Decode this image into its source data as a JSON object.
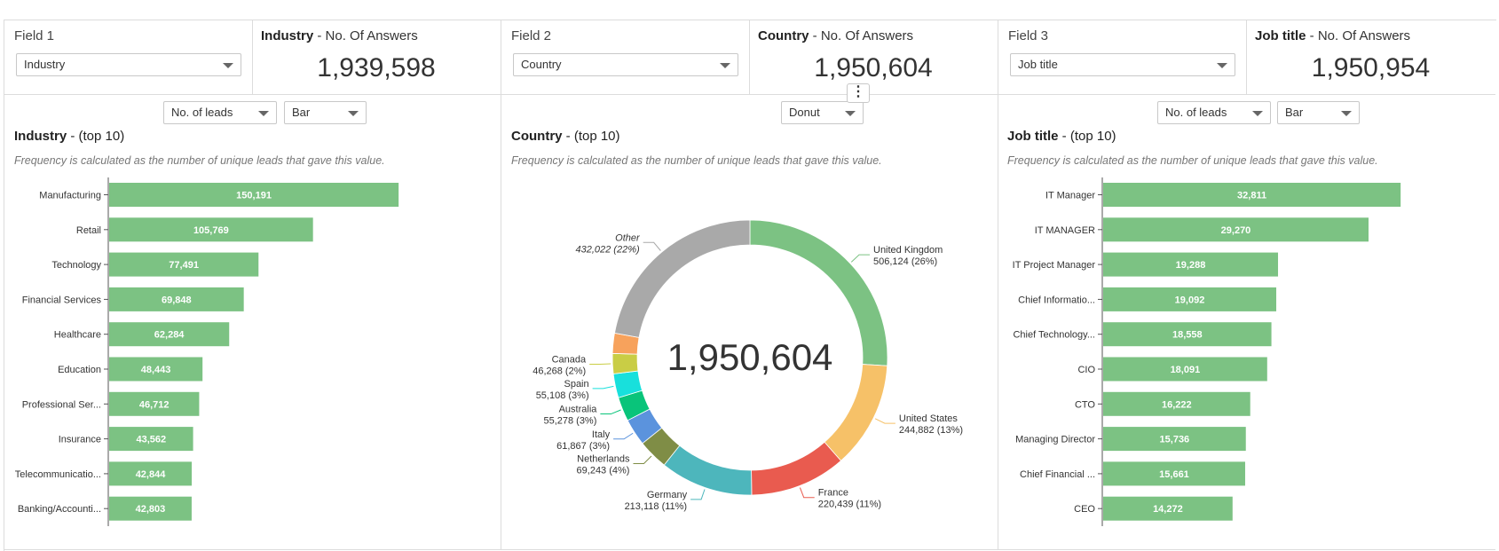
{
  "header": [
    {
      "field_label": "Field 1",
      "select_value": "Industry",
      "answers_name": "Industry",
      "answers_suffix": " - No. Of Answers",
      "total": "1,939,598"
    },
    {
      "field_label": "Field 2",
      "select_value": "Country",
      "answers_name": "Country",
      "answers_suffix": " - No. Of Answers",
      "total": "1,950,604"
    },
    {
      "field_label": "Field 3",
      "select_value": "Job title",
      "answers_name": "Job title",
      "answers_suffix": " - No. Of Answers",
      "total": "1,950,954"
    }
  ],
  "panels": [
    {
      "title_bold": "Industry",
      "title_rest": " - (top 10)",
      "subtitle": "Frequency is calculated as the number of unique leads that gave this value.",
      "metric_select": "No. of leads",
      "type_select": "Bar"
    },
    {
      "title_bold": "Country",
      "title_rest": " - (top 10)",
      "subtitle": "Frequency is calculated as the number of unique leads that gave this value.",
      "type_select": "Donut"
    },
    {
      "title_bold": "Job title",
      "title_rest": "  - (top 10)",
      "subtitle": "Frequency is calculated as the number of unique leads that gave this value.",
      "metric_select": "No. of leads",
      "type_select": "Bar"
    }
  ],
  "menu_icon": "kebab-menu-icon",
  "colors": {
    "bar": "#7cc283",
    "axis": "#555555"
  },
  "chart_data": [
    {
      "type": "bar",
      "orientation": "horizontal",
      "categories": [
        "Manufacturing",
        "Retail",
        "Technology",
        "Financial Services",
        "Healthcare",
        "Education",
        "Professional Ser...",
        "Insurance",
        "Telecommunicatio...",
        "Banking/Accounti..."
      ],
      "values": [
        150191,
        105769,
        77491,
        69848,
        62284,
        48443,
        46712,
        43562,
        42844,
        42803
      ],
      "value_labels": [
        "150,191",
        "105,769",
        "77,491",
        "69,848",
        "62,284",
        "48,443",
        "46,712",
        "43,562",
        "42,844",
        "42,803"
      ],
      "xlim": [
        0,
        175000
      ]
    },
    {
      "type": "pie",
      "variant": "donut",
      "center_label": "1,950,604",
      "slices": [
        {
          "name": "United Kingdom",
          "value": 506124,
          "label": "506,124 (26%)",
          "color": "#7cc283"
        },
        {
          "name": "United States",
          "value": 244882,
          "label": "244,882 (13%)",
          "color": "#f6c168"
        },
        {
          "name": "France",
          "value": 220439,
          "label": "220,439 (11%)",
          "color": "#e95b4f"
        },
        {
          "name": "Germany",
          "value": 213118,
          "label": "213,118 (11%)",
          "color": "#4db6bc"
        },
        {
          "name": "Netherlands",
          "value": 69243,
          "label": "69,243 (4%)",
          "color": "#7f8d46"
        },
        {
          "name": "Italy",
          "value": 61867,
          "label": "61,867 (3%)",
          "color": "#5b93dd"
        },
        {
          "name": "Australia",
          "value": 55278,
          "label": "55,278 (3%)",
          "color": "#09c47a"
        },
        {
          "name": "Spain",
          "value": 55108,
          "label": "55,108 (3%)",
          "color": "#18e0dc"
        },
        {
          "name": "Canada",
          "value": 46268,
          "label": "46,268 (2%)",
          "color": "#c9cd45"
        },
        {
          "name": "",
          "value": 46255,
          "label": "",
          "color": "#f7a25c"
        },
        {
          "name": "Other",
          "value": 432022,
          "label": "432,022 (22%)",
          "color": "#a9a9a9"
        }
      ]
    },
    {
      "type": "bar",
      "orientation": "horizontal",
      "categories": [
        "IT Manager",
        "IT MANAGER",
        "IT Project Manager",
        "Chief Informatio...",
        "Chief Technology...",
        "CIO",
        "CTO",
        "Managing Director",
        "Chief Financial ...",
        "CEO"
      ],
      "values": [
        32811,
        29270,
        19288,
        19092,
        18558,
        18091,
        16222,
        15736,
        15661,
        14272
      ],
      "value_labels": [
        "32,811",
        "29,270",
        "19,288",
        "19,092",
        "18,558",
        "18,091",
        "16,222",
        "15,736",
        "15,661",
        "14,272"
      ],
      "xlim": [
        0,
        37200
      ]
    }
  ]
}
